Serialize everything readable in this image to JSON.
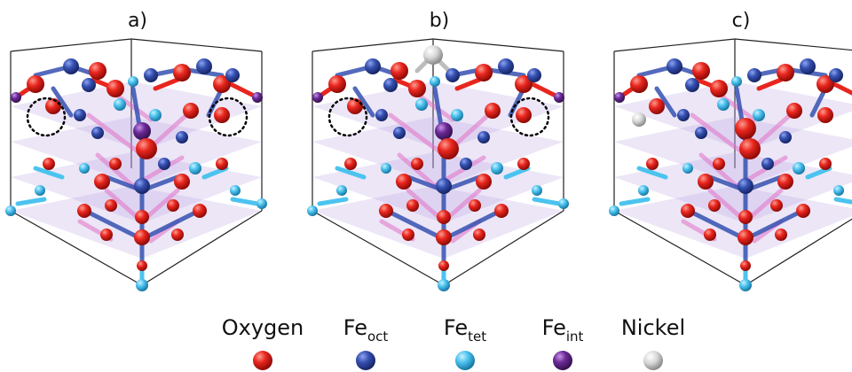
{
  "panels": [
    {
      "label": "a)",
      "variant": "a",
      "vacancies": 2,
      "nickel_atoms": 0
    },
    {
      "label": "b)",
      "variant": "b",
      "vacancies": 2,
      "nickel_atoms": 1
    },
    {
      "label": "c)",
      "variant": "c",
      "vacancies": 0,
      "nickel_atoms": 1
    }
  ],
  "legend": [
    {
      "key": "oxygen",
      "label": "Oxygen",
      "sub": "",
      "color": "#e8261e"
    },
    {
      "key": "fe_oct",
      "label": "Fe",
      "sub": "oct",
      "color": "#3550b0"
    },
    {
      "key": "fe_tet",
      "label": "Fe",
      "sub": "tet",
      "color": "#4cc3ef"
    },
    {
      "key": "fe_int",
      "label": "Fe",
      "sub": "int",
      "color": "#6b2a97"
    },
    {
      "key": "nickel",
      "label": "Nickel",
      "sub": "",
      "color": "#9a9a9a"
    }
  ],
  "colors": {
    "plane": "#b9a6e3",
    "bond_pink": "#e26fc5",
    "box": "#222222"
  }
}
